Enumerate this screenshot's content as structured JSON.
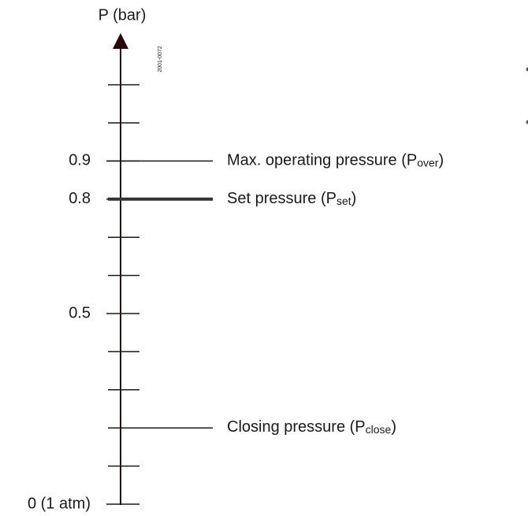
{
  "axis_label": "P (bar)",
  "figure_id": "2001-0072",
  "range": [
    0,
    1.1
  ],
  "ticks": [
    0.1,
    0.3,
    0.4,
    0.6,
    0.7,
    1.0,
    1.1
  ],
  "labeled_ticks": [
    {
      "value": 0,
      "label": "0 (1 atm)"
    },
    0.5,
    0.8,
    0.9
  ],
  "levels": [
    {
      "value": 0.9,
      "text": "Max. operating pressure (P",
      "subscript": "over",
      "suffix": ")",
      "bold": false
    },
    {
      "value": 0.8,
      "text": "Set pressure (P",
      "subscript": "set",
      "suffix": ")",
      "bold": true
    },
    {
      "value": 0.2,
      "text": "Closing pressure (P",
      "subscript": "close",
      "suffix": ")",
      "bold": false
    }
  ]
}
